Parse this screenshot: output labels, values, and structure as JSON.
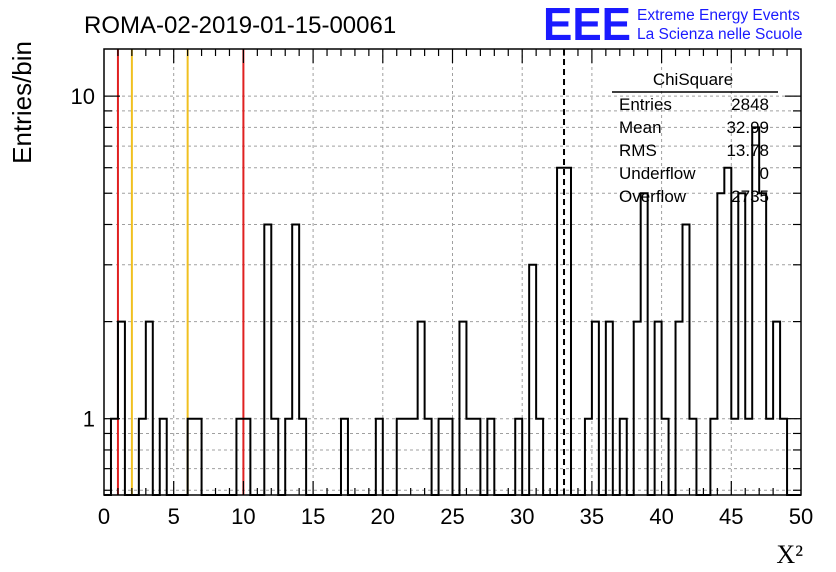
{
  "title": "ROMA-02-2019-01-15-00061",
  "logo": {
    "text": "EEE",
    "line1": "Extreme Energy Events",
    "line2": "La Scienza nelle Scuole",
    "color": "#1a1aff"
  },
  "stats_box": {
    "title": "ChiSquare",
    "rows": [
      {
        "label": "Entries",
        "value": "2848"
      },
      {
        "label": "Mean",
        "value": "32.99"
      },
      {
        "label": "RMS",
        "value": "13.78"
      },
      {
        "label": "Underflow",
        "value": "0"
      },
      {
        "label": "Overflow",
        "value": "2735"
      }
    ]
  },
  "chart_data": {
    "type": "histogram",
    "title": "ROMA-02-2019-01-15-00061",
    "xlabel": "X²",
    "ylabel": "Entries/bin",
    "xlim": [
      0,
      50
    ],
    "ylim": [
      0.58,
      14
    ],
    "yscale": "log",
    "grid": true,
    "bin_width": 0.5,
    "x_ticks": [
      "0",
      "5",
      "10",
      "15",
      "20",
      "25",
      "30",
      "35",
      "40",
      "45",
      "50"
    ],
    "y_ticks": [
      "1",
      "10"
    ],
    "bins": [
      {
        "x": 0.5,
        "value": 1
      },
      {
        "x": 1.0,
        "value": 2
      },
      {
        "x": 2.5,
        "value": 1
      },
      {
        "x": 3.0,
        "value": 2
      },
      {
        "x": 4.0,
        "value": 1
      },
      {
        "x": 6.0,
        "value": 1
      },
      {
        "x": 6.5,
        "value": 1
      },
      {
        "x": 9.5,
        "value": 1
      },
      {
        "x": 10.0,
        "value": 1
      },
      {
        "x": 11.5,
        "value": 4
      },
      {
        "x": 12.0,
        "value": 1
      },
      {
        "x": 13.0,
        "value": 1
      },
      {
        "x": 13.5,
        "value": 4
      },
      {
        "x": 14.0,
        "value": 1
      },
      {
        "x": 17.0,
        "value": 1
      },
      {
        "x": 19.5,
        "value": 1
      },
      {
        "x": 21.0,
        "value": 1
      },
      {
        "x": 21.5,
        "value": 1
      },
      {
        "x": 22.0,
        "value": 1
      },
      {
        "x": 22.5,
        "value": 2
      },
      {
        "x": 23.0,
        "value": 1
      },
      {
        "x": 24.0,
        "value": 1
      },
      {
        "x": 24.5,
        "value": 1
      },
      {
        "x": 25.5,
        "value": 2
      },
      {
        "x": 26.0,
        "value": 1
      },
      {
        "x": 26.5,
        "value": 1
      },
      {
        "x": 27.5,
        "value": 1
      },
      {
        "x": 29.5,
        "value": 1
      },
      {
        "x": 30.5,
        "value": 3
      },
      {
        "x": 31.0,
        "value": 1
      },
      {
        "x": 32.5,
        "value": 6
      },
      {
        "x": 33.0,
        "value": 6
      },
      {
        "x": 34.5,
        "value": 1
      },
      {
        "x": 35.0,
        "value": 2
      },
      {
        "x": 36.0,
        "value": 2
      },
      {
        "x": 37.0,
        "value": 1
      },
      {
        "x": 38.0,
        "value": 2
      },
      {
        "x": 38.5,
        "value": 5
      },
      {
        "x": 39.5,
        "value": 2
      },
      {
        "x": 40.0,
        "value": 1
      },
      {
        "x": 41.0,
        "value": 2
      },
      {
        "x": 41.5,
        "value": 4
      },
      {
        "x": 42.0,
        "value": 1
      },
      {
        "x": 43.5,
        "value": 1
      },
      {
        "x": 44.0,
        "value": 5
      },
      {
        "x": 44.5,
        "value": 6
      },
      {
        "x": 45.0,
        "value": 1
      },
      {
        "x": 45.5,
        "value": 5
      },
      {
        "x": 46.0,
        "value": 1
      },
      {
        "x": 46.5,
        "value": 8
      },
      {
        "x": 47.0,
        "value": 5
      },
      {
        "x": 47.5,
        "value": 1
      },
      {
        "x": 48.0,
        "value": 2
      },
      {
        "x": 48.5,
        "value": 1
      }
    ],
    "vertical_lines": [
      {
        "x": 1,
        "color": "#e02020",
        "style": "solid"
      },
      {
        "x": 2,
        "color": "#f0c020",
        "style": "solid"
      },
      {
        "x": 6,
        "color": "#f0c020",
        "style": "solid"
      },
      {
        "x": 10,
        "color": "#e02020",
        "style": "solid"
      },
      {
        "x": 33,
        "color": "#000000",
        "style": "dashed"
      }
    ]
  }
}
